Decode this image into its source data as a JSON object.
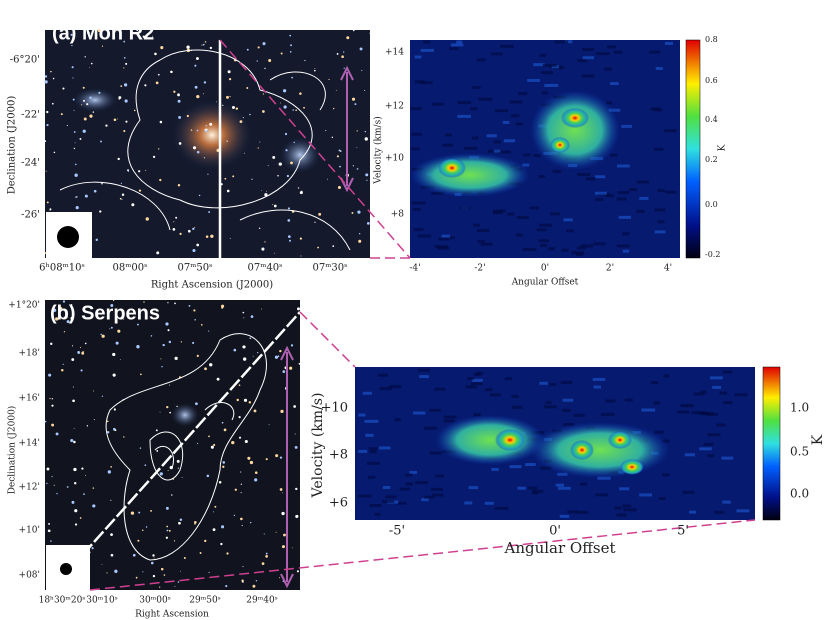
{
  "panel_a": {
    "label": "(a) Mon R2",
    "image": {
      "y_axis_label": "Declination (J2000)",
      "x_axis_label": "Right Ascension (J2000)",
      "y_ticks": [
        "-6°20'",
        "-22'",
        "-24'",
        "-26'"
      ],
      "x_ticks": [
        "6ʰ08ᵐ10ˢ",
        "08ᵐ00ˢ",
        "07ᵐ50ˢ",
        "07ᵐ40ˢ",
        "07ᵐ30ˢ"
      ]
    },
    "pv": {
      "y_axis_label": "Velocity (km/s)",
      "x_axis_label": "Angular Offset",
      "y_ticks": [
        "+14",
        "+12",
        "+10",
        "+8"
      ],
      "x_ticks": [
        "-4'",
        "-2'",
        "0'",
        "2'",
        "4'"
      ],
      "colorbar_label": "K",
      "colorbar_ticks": [
        "0.8",
        "0.6",
        "0.4",
        "0.2",
        "0.0",
        "-0.2"
      ]
    }
  },
  "panel_b": {
    "label": "(b) Serpens",
    "image": {
      "y_axis_label": "Declination (J2000)",
      "x_axis_label": "Right Ascension",
      "y_ticks": [
        "+1°20'",
        "+18'",
        "+16'",
        "+14'",
        "+12'",
        "+10'",
        "+08'"
      ],
      "x_ticks": [
        "18ʰ30ᵐ20ˢ",
        "30ᵐ10ˢ",
        "30ᵐ00ˢ",
        "29ᵐ50ˢ",
        "29ᵐ40ˢ"
      ]
    },
    "pv": {
      "y_axis_label": "Velocity (km/s)",
      "x_axis_label": "Angular Offset",
      "y_ticks": [
        "+10",
        "+8",
        "+6"
      ],
      "x_ticks": [
        "-5'",
        "0'",
        "5'"
      ],
      "colorbar_label": "K",
      "colorbar_ticks": [
        "1.0",
        "0.5",
        "0.0"
      ]
    }
  }
}
